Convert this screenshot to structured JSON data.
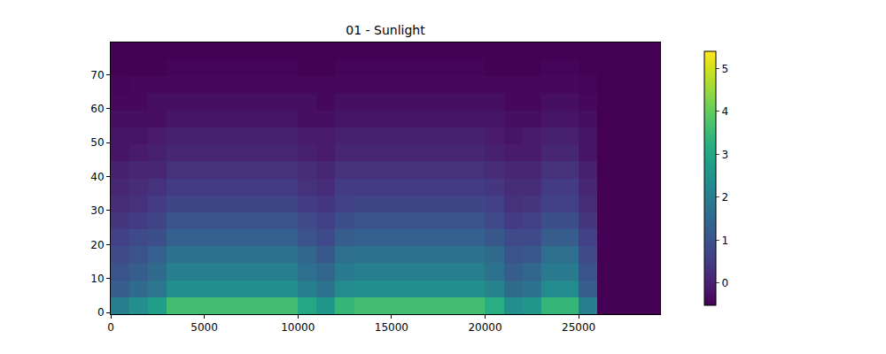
{
  "chart_data": {
    "type": "heatmap",
    "title": "01 - Sunlight",
    "x": [
      0,
      1000,
      2000,
      3000,
      4000,
      5000,
      6000,
      7000,
      8000,
      9000,
      10000,
      11000,
      12000,
      13000,
      14000,
      15000,
      16000,
      17000,
      18000,
      19000,
      20000,
      21000,
      22000,
      23000,
      24000,
      25000,
      26000,
      27000,
      28000,
      29000,
      29350
    ],
    "y": [
      -0.5,
      4.5,
      9.5,
      14.5,
      19.5,
      24.5,
      29.5,
      34.5,
      39.5,
      44.5,
      49.5,
      54.5,
      59.5,
      64.5,
      69.5,
      74.5,
      79.5
    ],
    "z": [
      [
        2.0,
        2.4,
        2.8,
        3.6,
        3.6,
        3.6,
        3.6,
        3.6,
        3.6,
        3.6,
        3.0,
        2.6,
        3.4,
        3.6,
        3.6,
        3.6,
        3.6,
        3.6,
        3.6,
        3.6,
        3.2,
        2.4,
        2.6,
        3.4,
        3.4,
        2.0,
        -0.52,
        -0.52,
        -0.52,
        -0.52
      ],
      [
        1.2,
        1.5,
        1.8,
        2.4,
        2.4,
        2.4,
        2.4,
        2.4,
        2.4,
        2.4,
        2.0,
        1.7,
        2.3,
        2.4,
        2.4,
        2.4,
        2.4,
        2.4,
        2.4,
        2.4,
        2.1,
        1.5,
        1.7,
        2.3,
        2.3,
        1.2,
        -0.52,
        -0.52,
        -0.52,
        -0.52
      ],
      [
        1.0,
        1.2,
        1.5,
        2.0,
        2.0,
        2.0,
        2.0,
        2.0,
        2.0,
        2.0,
        1.6,
        1.4,
        1.9,
        2.0,
        2.0,
        2.0,
        2.0,
        2.0,
        2.0,
        2.0,
        1.7,
        1.2,
        1.4,
        1.9,
        1.9,
        1.0,
        -0.52,
        -0.52,
        -0.52,
        -0.52
      ],
      [
        0.8,
        1.0,
        1.3,
        1.7,
        1.7,
        1.7,
        1.7,
        1.7,
        1.7,
        1.7,
        1.4,
        1.1,
        1.6,
        1.7,
        1.7,
        1.7,
        1.7,
        1.7,
        1.7,
        1.7,
        1.5,
        1.0,
        1.1,
        1.6,
        1.6,
        0.8,
        -0.52,
        -0.52,
        -0.52,
        -0.52
      ],
      [
        0.6,
        0.8,
        0.9,
        1.3,
        1.3,
        1.3,
        1.3,
        1.3,
        1.3,
        1.3,
        1.0,
        0.8,
        1.2,
        1.3,
        1.3,
        1.3,
        1.3,
        1.3,
        1.3,
        1.3,
        1.1,
        0.8,
        0.8,
        1.2,
        1.2,
        0.6,
        -0.52,
        -0.52,
        -0.52,
        -0.52
      ],
      [
        0.4,
        0.5,
        0.7,
        1.0,
        1.0,
        1.0,
        1.0,
        1.0,
        1.0,
        1.0,
        0.8,
        0.6,
        0.9,
        1.0,
        1.0,
        1.0,
        1.0,
        1.0,
        1.0,
        1.0,
        0.8,
        0.5,
        0.6,
        0.9,
        0.9,
        0.4,
        -0.52,
        -0.52,
        -0.52,
        -0.52
      ],
      [
        0.2,
        0.3,
        0.5,
        0.7,
        0.7,
        0.7,
        0.7,
        0.7,
        0.7,
        0.7,
        0.5,
        0.4,
        0.6,
        0.7,
        0.7,
        0.7,
        0.7,
        0.7,
        0.7,
        0.7,
        0.6,
        0.3,
        0.4,
        0.6,
        0.6,
        0.2,
        -0.52,
        -0.52,
        -0.52,
        -0.52
      ],
      [
        0.1,
        0.2,
        0.3,
        0.5,
        0.5,
        0.5,
        0.5,
        0.5,
        0.5,
        0.5,
        0.3,
        0.2,
        0.5,
        0.5,
        0.5,
        0.5,
        0.5,
        0.5,
        0.5,
        0.5,
        0.4,
        0.2,
        0.2,
        0.5,
        0.5,
        0.1,
        -0.52,
        -0.52,
        -0.52,
        -0.52
      ],
      [
        0.0,
        0.1,
        0.1,
        0.3,
        0.3,
        0.3,
        0.3,
        0.3,
        0.3,
        0.3,
        0.2,
        0.1,
        0.3,
        0.3,
        0.3,
        0.3,
        0.3,
        0.3,
        0.3,
        0.3,
        0.2,
        0.1,
        0.1,
        0.3,
        0.3,
        0.0,
        -0.52,
        -0.52,
        -0.52,
        -0.52
      ],
      [
        -0.2,
        -0.1,
        0.0,
        0.1,
        0.1,
        0.1,
        0.1,
        0.1,
        0.1,
        0.1,
        0.0,
        -0.1,
        0.1,
        0.1,
        0.1,
        0.1,
        0.1,
        0.1,
        0.1,
        0.1,
        0.0,
        -0.1,
        -0.1,
        0.1,
        0.1,
        -0.2,
        -0.52,
        -0.52,
        -0.52,
        -0.52
      ],
      [
        -0.2,
        -0.2,
        -0.1,
        0.0,
        0.0,
        0.0,
        0.0,
        0.0,
        0.0,
        0.0,
        -0.1,
        -0.1,
        0.0,
        0.0,
        0.0,
        0.0,
        0.0,
        0.0,
        0.0,
        0.0,
        -0.1,
        -0.2,
        -0.1,
        0.0,
        0.0,
        -0.2,
        -0.52,
        -0.52,
        -0.52,
        -0.52
      ],
      [
        -0.3,
        -0.3,
        -0.3,
        -0.2,
        -0.2,
        -0.2,
        -0.2,
        -0.2,
        -0.2,
        -0.2,
        -0.3,
        -0.3,
        -0.2,
        -0.2,
        -0.2,
        -0.2,
        -0.2,
        -0.2,
        -0.2,
        -0.2,
        -0.2,
        -0.3,
        -0.3,
        -0.2,
        -0.2,
        -0.3,
        -0.52,
        -0.52,
        -0.52,
        -0.52
      ],
      [
        -0.4,
        -0.4,
        -0.3,
        -0.3,
        -0.3,
        -0.3,
        -0.3,
        -0.3,
        -0.3,
        -0.3,
        -0.3,
        -0.4,
        -0.3,
        -0.3,
        -0.3,
        -0.3,
        -0.3,
        -0.3,
        -0.3,
        -0.3,
        -0.3,
        -0.4,
        -0.4,
        -0.3,
        -0.3,
        -0.4,
        -0.52,
        -0.52,
        -0.52,
        -0.52
      ],
      [
        -0.45,
        -0.4,
        -0.4,
        -0.4,
        -0.4,
        -0.4,
        -0.4,
        -0.4,
        -0.4,
        -0.4,
        -0.4,
        -0.4,
        -0.4,
        -0.4,
        -0.4,
        -0.4,
        -0.4,
        -0.4,
        -0.4,
        -0.4,
        -0.4,
        -0.4,
        -0.4,
        -0.4,
        -0.4,
        -0.45,
        -0.52,
        -0.52,
        -0.52,
        -0.52
      ],
      [
        -0.5,
        -0.5,
        -0.5,
        -0.45,
        -0.45,
        -0.45,
        -0.45,
        -0.45,
        -0.45,
        -0.45,
        -0.5,
        -0.5,
        -0.45,
        -0.45,
        -0.45,
        -0.45,
        -0.45,
        -0.45,
        -0.45,
        -0.45,
        -0.5,
        -0.5,
        -0.5,
        -0.45,
        -0.45,
        -0.5,
        -0.52,
        -0.52,
        -0.52,
        -0.52
      ],
      [
        -0.5,
        -0.5,
        -0.5,
        -0.5,
        -0.5,
        -0.5,
        -0.5,
        -0.5,
        -0.5,
        -0.5,
        -0.5,
        -0.5,
        -0.5,
        -0.5,
        -0.5,
        -0.5,
        -0.5,
        -0.5,
        -0.5,
        -0.5,
        -0.5,
        -0.5,
        -0.5,
        -0.5,
        -0.5,
        -0.5,
        -0.52,
        -0.52,
        -0.52,
        -0.52
      ]
    ],
    "xlim": [
      0,
      29350
    ],
    "ylim": [
      -0.5,
      79.5
    ],
    "xticks": [
      0,
      5000,
      10000,
      15000,
      20000,
      25000
    ],
    "yticks": [
      0,
      10,
      20,
      30,
      40,
      50,
      60,
      70
    ],
    "colorbar": {
      "range": [
        -0.52,
        5.4
      ],
      "ticks": [
        0,
        1,
        2,
        3,
        4,
        5
      ]
    },
    "grid": false
  }
}
